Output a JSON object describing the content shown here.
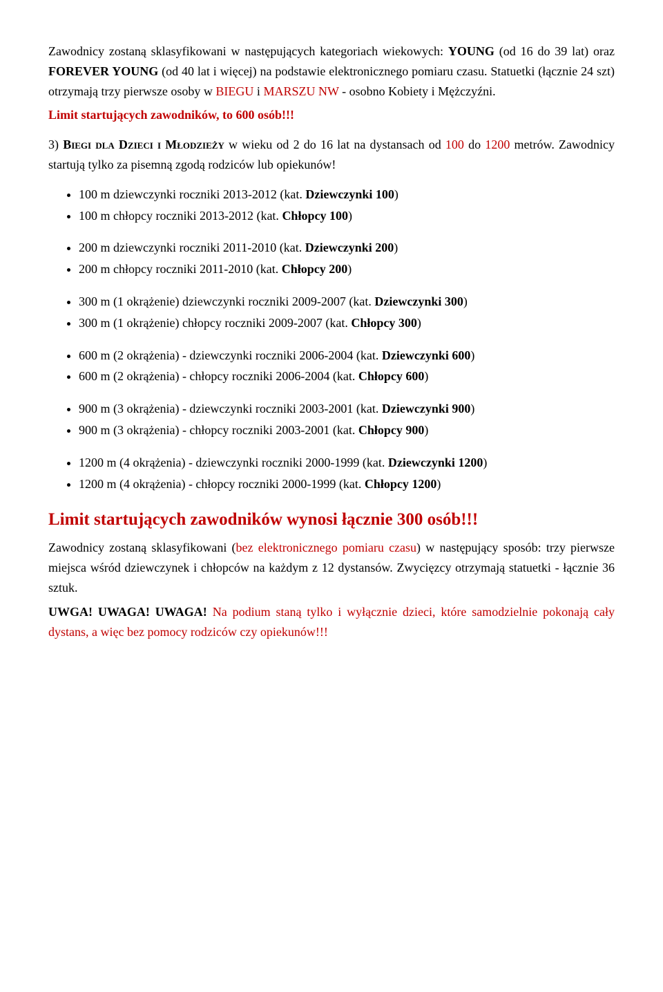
{
  "intro": {
    "p1_a": "Zawodnicy zostaną sklasyfikowani w następujących kategoriach wiekowych: ",
    "p1_b": "YOUNG",
    "p1_c": " (od 16 do 39 lat) oraz ",
    "p1_d": "FOREVER YOUNG",
    "p1_e": " (od 40 lat i więcej) na podstawie elektronicznego pomiaru czasu. Statuetki (łącznie 24 szt) otrzymają trzy pierwsze osoby w ",
    "p1_f": "BIEGU",
    "p1_g": " i ",
    "p1_h": "MARSZU NW",
    "p1_i": " - osobno Kobiety i Mężczyźni.",
    "limit": "Limit startujących zawodników, to 600 osób!!!"
  },
  "sec3": {
    "a": "3) ",
    "b": "Biegi dla Dzieci i Młodzieży",
    "c": " w wieku od 2 do 16 lat na dystansach od ",
    "d": "100",
    "e": " do ",
    "f": "1200",
    "g": " metrów. Zawodnicy startują tylko za pisemną zgodą rodziców lub opiekunów!"
  },
  "g100": {
    "d_a": "100 m dziewczynki roczniki 2013-2012 (kat. ",
    "d_b": "Dziewczynki 100",
    "d_c": ")",
    "c_a": "100 m chłopcy roczniki 2013-2012 (kat. ",
    "c_b": "Chłopcy 100",
    "c_c": ")"
  },
  "g200": {
    "d_a": "200 m dziewczynki roczniki 2011-2010 (kat. ",
    "d_b": "Dziewczynki 200",
    "d_c": ")",
    "c_a": "200 m chłopcy roczniki 2011-2010 (kat. ",
    "c_b": "Chłopcy 200",
    "c_c": ")"
  },
  "g300": {
    "d_a": "300 m (1 okrążenie) dziewczynki roczniki 2009-2007 (kat. ",
    "d_b": "Dziewczynki 300",
    "d_c": ")",
    "c_a": "300 m (1 okrążenie) chłopcy roczniki 2009-2007 (kat. ",
    "c_b": "Chłopcy 300",
    "c_c": ")"
  },
  "g600": {
    "d_a": "600 m (2 okrążenia) - dziewczynki roczniki 2006-2004 (kat. ",
    "d_b": "Dziewczynki 600",
    "d_c": ")",
    "c_a": "600 m (2 okrążenia) - chłopcy roczniki 2006-2004 (kat. ",
    "c_b": "Chłopcy 600",
    "c_c": ")"
  },
  "g900": {
    "d_a": "900 m (3 okrążenia) - dziewczynki roczniki 2003-2001 (kat. ",
    "d_b": "Dziewczynki 900",
    "d_c": ")",
    "c_a": "900 m (3 okrążenia) - chłopcy roczniki 2003-2001 (kat. ",
    "c_b": "Chłopcy 900",
    "c_c": ")"
  },
  "g1200": {
    "d_a": "1200 m (4 okrążenia) - dziewczynki roczniki 2000-1999 (kat. ",
    "d_b": "Dziewczynki 1200",
    "d_c": ")",
    "c_a": "1200 m (4 okrążenia) - chłopcy roczniki 2000-1999 (kat. ",
    "c_b": "Chłopcy 1200",
    "c_c": ")"
  },
  "limit300": "Limit startujących zawodników wynosi łącznie 300 osób!!!",
  "closing": {
    "p_a": "Zawodnicy zostaną sklasyfikowani (",
    "p_b": "bez elektronicznego pomiaru czasu",
    "p_c": ") w następujący sposób: trzy pierwsze miejsca wśród dziewczynek i chłopców na każdym z 12 dystansów. Zwycięzcy otrzymają statuetki - łącznie 36 sztuk.",
    "warn_a": "UWGA! UWAGA! UWAGA!",
    "warn_b": " Na podium staną tylko i wyłącznie dzieci, które samodzielnie pokonają cały dystans, a więc bez pomocy rodziców czy opiekunów!!!"
  }
}
